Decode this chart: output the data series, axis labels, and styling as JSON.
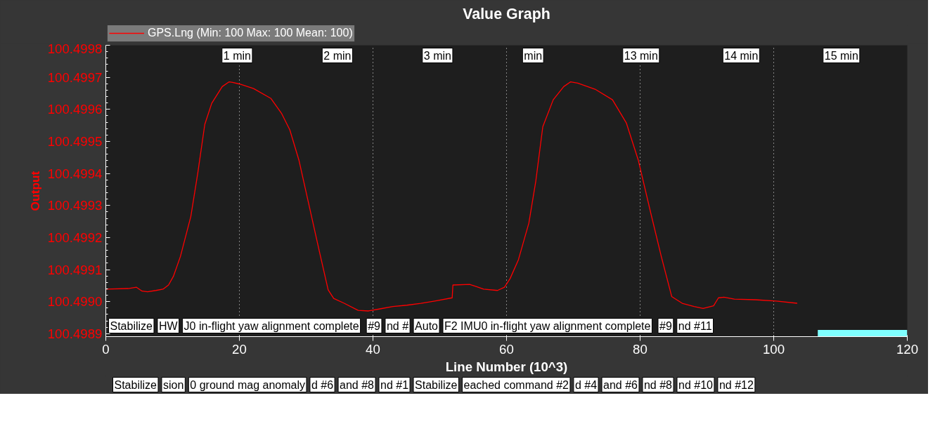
{
  "chart_data": {
    "type": "line",
    "title": "Value Graph",
    "xlabel": "Line Number (10^3)",
    "ylabel": "Output",
    "x": [
      0,
      3.34,
      4.59,
      5.43,
      6.26,
      7.51,
      8.56,
      9.39,
      10.12,
      11.17,
      12.73,
      13.77,
      14.82,
      15.86,
      17.43,
      18.47,
      18.99,
      20.04,
      22.12,
      24.73,
      26.3,
      27.55,
      28.91,
      30.47,
      32.04,
      33.29,
      34.12,
      35.69,
      37.78,
      39.34,
      40.91,
      42.99,
      45.08,
      47.17,
      49.25,
      51.86,
      51.97,
      54.47,
      55.52,
      56.56,
      58.65,
      59.69,
      60.53,
      61.78,
      63.34,
      64.38,
      65.43,
      66.99,
      68.56,
      69.6,
      70.65,
      73.25,
      75.86,
      77.95,
      79.72,
      81.6,
      83.17,
      84.73,
      86.3,
      88.07,
      89.43,
      91.0,
      91.73,
      92.56,
      94.12,
      97.26,
      100.38,
      103.52
    ],
    "series": [
      {
        "name": "GPS.Lng (Min: 100 Max: 100 Mean: 100)",
        "color": "#ff0000",
        "values": [
          100.499039,
          100.499041,
          100.499045,
          100.499033,
          100.499031,
          100.499035,
          100.499039,
          100.499052,
          100.499079,
          100.499141,
          100.499266,
          100.499401,
          100.499553,
          100.499619,
          100.499671,
          100.499686,
          100.499684,
          100.499679,
          100.499665,
          100.499634,
          100.499588,
          100.499536,
          100.499442,
          100.499297,
          100.499151,
          100.499037,
          100.49901,
          100.498995,
          100.498973,
          100.498971,
          100.498977,
          100.498985,
          100.498989,
          100.498995,
          100.499002,
          100.499012,
          100.499052,
          100.499054,
          100.499047,
          100.499039,
          100.499035,
          100.499045,
          100.499072,
          100.499131,
          100.499245,
          100.499376,
          100.499546,
          100.49963,
          100.499671,
          100.499686,
          100.499682,
          100.499663,
          100.49963,
          100.499557,
          100.499442,
          100.499276,
          100.499141,
          100.499016,
          100.498995,
          100.498985,
          100.498979,
          100.498987,
          100.499012,
          100.499014,
          100.499008,
          100.499006,
          100.499002,
          100.498995
        ]
      },
      {
        "type": "area",
        "color": "#7fffff",
        "x": [
          106.6,
          120
        ],
        "values": [
          100.498912,
          100.498912
        ]
      }
    ],
    "xlim": [
      0,
      120
    ],
    "xticks": [
      0,
      20,
      40,
      60,
      80,
      100,
      120
    ],
    "ylim": [
      100.498891,
      100.4998
    ],
    "yticks": [
      100.4989,
      {
        "value": 100.499,
        "label": "100.4990"
      },
      100.4991,
      100.4992,
      100.4993,
      100.4994,
      100.4995,
      100.4996,
      100.4997,
      100.4998
    ],
    "grid": "x",
    "legend": "top left",
    "annotations": [
      "1 min",
      "2 min",
      "3 min",
      "min",
      "13 min",
      "14 min",
      "15 min",
      "Stabilize",
      "HW",
      "J0 in-flight yaw alignment complete",
      "#9",
      "nd #",
      "Auto",
      "F2 IMU0 in-flight yaw alignment complete",
      "#9",
      "nd #11",
      "Stabilize",
      "sion",
      "0 ground mag anomaly",
      "d #6",
      "and #8",
      "nd #1",
      "Stabilize",
      "eached command #2",
      "d #4",
      "and #6",
      "nd #8",
      "nd #10",
      "nd #12"
    ]
  }
}
